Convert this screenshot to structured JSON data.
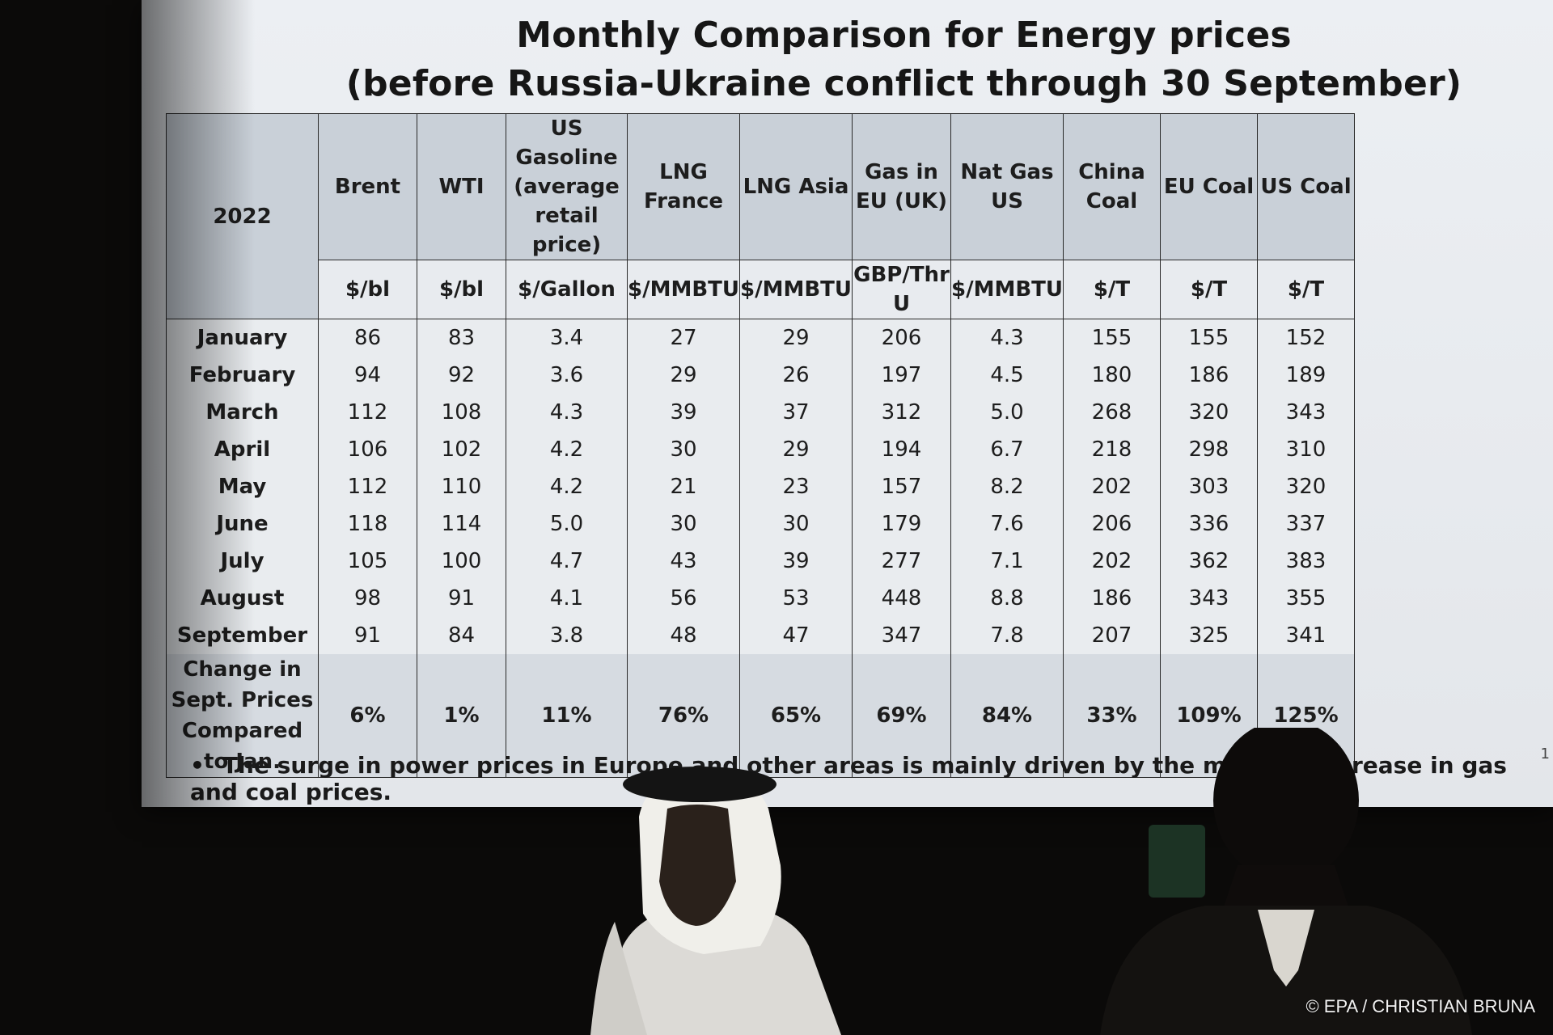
{
  "slide": {
    "title_line1": "Monthly Comparison for Energy prices",
    "title_line2": "(before Russia-Ukraine conflict through 30 September)",
    "year_label": "2022",
    "columns": [
      {
        "name": "Brent",
        "unit": "$/bl"
      },
      {
        "name": "WTI",
        "unit": "$/bl"
      },
      {
        "name": "US Gasoline (average retail price)",
        "unit": "$/Gallon"
      },
      {
        "name": "LNG France",
        "unit": "$/MMBTU"
      },
      {
        "name": "LNG Asia",
        "unit": "$/MMBTU"
      },
      {
        "name": "Gas in EU (UK)",
        "unit": "GBP/Thr U"
      },
      {
        "name": "Nat Gas US",
        "unit": "$/MMBTU"
      },
      {
        "name": "China Coal",
        "unit": "$/T"
      },
      {
        "name": "EU Coal",
        "unit": "$/T"
      },
      {
        "name": "US Coal",
        "unit": "$/T"
      }
    ],
    "rows": [
      {
        "month": "January",
        "values": [
          "86",
          "83",
          "3.4",
          "27",
          "29",
          "206",
          "4.3",
          "155",
          "155",
          "152"
        ]
      },
      {
        "month": "February",
        "values": [
          "94",
          "92",
          "3.6",
          "29",
          "26",
          "197",
          "4.5",
          "180",
          "186",
          "189"
        ]
      },
      {
        "month": "March",
        "values": [
          "112",
          "108",
          "4.3",
          "39",
          "37",
          "312",
          "5.0",
          "268",
          "320",
          "343"
        ]
      },
      {
        "month": "April",
        "values": [
          "106",
          "102",
          "4.2",
          "30",
          "29",
          "194",
          "6.7",
          "218",
          "298",
          "310"
        ]
      },
      {
        "month": "May",
        "values": [
          "112",
          "110",
          "4.2",
          "21",
          "23",
          "157",
          "8.2",
          "202",
          "303",
          "320"
        ]
      },
      {
        "month": "June",
        "values": [
          "118",
          "114",
          "5.0",
          "30",
          "30",
          "179",
          "7.6",
          "206",
          "336",
          "337"
        ]
      },
      {
        "month": "July",
        "values": [
          "105",
          "100",
          "4.7",
          "43",
          "39",
          "277",
          "7.1",
          "202",
          "362",
          "383"
        ]
      },
      {
        "month": "August",
        "values": [
          "98",
          "91",
          "4.1",
          "56",
          "53",
          "448",
          "8.8",
          "186",
          "343",
          "355"
        ]
      },
      {
        "month": "September",
        "values": [
          "91",
          "84",
          "3.8",
          "48",
          "47",
          "347",
          "7.8",
          "207",
          "325",
          "341"
        ]
      }
    ],
    "change_row": {
      "label": "Change in Sept. Prices Compared to Jan.",
      "values": [
        "6%",
        "1%",
        "11%",
        "76%",
        "65%",
        "69%",
        "84%",
        "33%",
        "109%",
        "125%"
      ]
    },
    "bullet_note": "The surge in power prices in Europe and other areas is mainly driven by the massive increase in gas and coal prices.",
    "slide_number": "1"
  },
  "photo_credit": "© EPA / CHRISTIAN BRUNA",
  "colors": {
    "screen": "#e9ecef",
    "header_fill": "#c9d0d8",
    "background": "#0b0a09"
  }
}
